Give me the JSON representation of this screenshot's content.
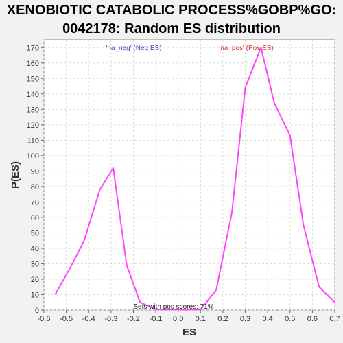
{
  "title_line1": "XENOBIOTIC CATABOLIC PROCESS%GOBP%GO:",
  "title_line2": "0042178: Random ES distribution",
  "chart_data": {
    "type": "line",
    "xlabel": "ES",
    "ylabel": "P(ES)",
    "xlim": [
      -0.6,
      0.7
    ],
    "ylim": [
      0,
      175
    ],
    "x_ticks": [
      "-0.6",
      "-0.5",
      "-0.4",
      "-0.3",
      "-0.2",
      "-0.1",
      "0.0",
      "0.1",
      "0.2",
      "0.3",
      "0.4",
      "0.5",
      "0.6",
      "0.7"
    ],
    "y_ticks": [
      "0",
      "10",
      "20",
      "30",
      "40",
      "50",
      "60",
      "70",
      "80",
      "90",
      "100",
      "110",
      "120",
      "130",
      "140",
      "150",
      "160",
      "170"
    ],
    "grid": true,
    "series": [
      {
        "color": "#ff44ff",
        "x": [
          -0.55,
          -0.48,
          -0.42,
          -0.35,
          -0.29,
          -0.23,
          -0.17,
          -0.1,
          -0.04,
          0.03,
          0.1,
          0.17,
          0.24,
          0.3,
          0.37,
          0.43,
          0.5,
          0.56,
          0.63,
          0.7
        ],
        "y": [
          10,
          28,
          45,
          78,
          92,
          29,
          5,
          0.5,
          0.3,
          0.2,
          0.3,
          13,
          63,
          144,
          170,
          134,
          113,
          55,
          15,
          5
        ]
      }
    ],
    "legend": [
      {
        "label": "'na_neg' (Neg ES)",
        "color": "#4444cc"
      },
      {
        "label": "'na_pos' (Pos ES)",
        "color": "#dd3333"
      }
    ],
    "annotation": "Sets with pos scores: 71%"
  }
}
